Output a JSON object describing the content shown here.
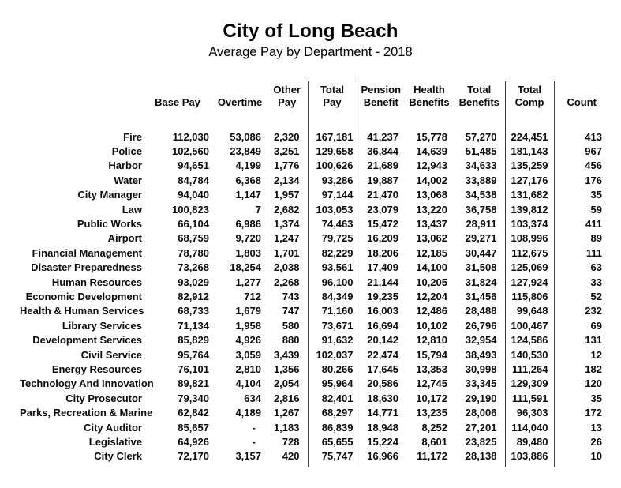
{
  "title": "City of Long Beach",
  "subtitle": "Average Pay by Department - 2018",
  "table": {
    "columns": [
      {
        "key": "department",
        "line1": "",
        "line2": "",
        "divider_after": false
      },
      {
        "key": "base_pay",
        "line1": "",
        "line2": "Base Pay",
        "divider_after": false
      },
      {
        "key": "overtime",
        "line1": "",
        "line2": "Overtime",
        "divider_after": false
      },
      {
        "key": "other_pay",
        "line1": "Other",
        "line2": "Pay",
        "divider_after": true
      },
      {
        "key": "total_pay",
        "line1": "Total",
        "line2": "Pay",
        "divider_after": true
      },
      {
        "key": "pension_benefit",
        "line1": "Pension",
        "line2": "Benefit",
        "divider_after": false
      },
      {
        "key": "health_benefits",
        "line1": "Health",
        "line2": "Benefits",
        "divider_after": false
      },
      {
        "key": "total_benefits",
        "line1": "Total",
        "line2": "Benefits",
        "divider_after": true
      },
      {
        "key": "total_comp",
        "line1": "Total",
        "line2": "Comp",
        "divider_after": true
      },
      {
        "key": "count",
        "line1": "",
        "line2": "Count",
        "divider_after": false
      }
    ],
    "rows": [
      {
        "department": "Fire",
        "base_pay": "112,030",
        "overtime": "53,086",
        "other_pay": "2,320",
        "total_pay": "167,181",
        "pension_benefit": "41,237",
        "health_benefits": "15,778",
        "total_benefits": "57,270",
        "total_comp": "224,451",
        "count": "413"
      },
      {
        "department": "Police",
        "base_pay": "102,560",
        "overtime": "23,849",
        "other_pay": "3,251",
        "total_pay": "129,658",
        "pension_benefit": "36,844",
        "health_benefits": "14,639",
        "total_benefits": "51,485",
        "total_comp": "181,143",
        "count": "967"
      },
      {
        "department": "Harbor",
        "base_pay": "94,651",
        "overtime": "4,199",
        "other_pay": "1,776",
        "total_pay": "100,626",
        "pension_benefit": "21,689",
        "health_benefits": "12,943",
        "total_benefits": "34,633",
        "total_comp": "135,259",
        "count": "456"
      },
      {
        "department": "Water",
        "base_pay": "84,784",
        "overtime": "6,368",
        "other_pay": "2,134",
        "total_pay": "93,286",
        "pension_benefit": "19,887",
        "health_benefits": "14,002",
        "total_benefits": "33,889",
        "total_comp": "127,176",
        "count": "176"
      },
      {
        "department": "City Manager",
        "base_pay": "94,040",
        "overtime": "1,147",
        "other_pay": "1,957",
        "total_pay": "97,144",
        "pension_benefit": "21,470",
        "health_benefits": "13,068",
        "total_benefits": "34,538",
        "total_comp": "131,682",
        "count": "35"
      },
      {
        "department": "Law",
        "base_pay": "100,823",
        "overtime": "7",
        "other_pay": "2,682",
        "total_pay": "103,053",
        "pension_benefit": "23,079",
        "health_benefits": "13,220",
        "total_benefits": "36,758",
        "total_comp": "139,812",
        "count": "59"
      },
      {
        "department": "Public Works",
        "base_pay": "66,104",
        "overtime": "6,986",
        "other_pay": "1,374",
        "total_pay": "74,463",
        "pension_benefit": "15,472",
        "health_benefits": "13,437",
        "total_benefits": "28,911",
        "total_comp": "103,374",
        "count": "411"
      },
      {
        "department": "Airport",
        "base_pay": "68,759",
        "overtime": "9,720",
        "other_pay": "1,247",
        "total_pay": "79,725",
        "pension_benefit": "16,209",
        "health_benefits": "13,062",
        "total_benefits": "29,271",
        "total_comp": "108,996",
        "count": "89"
      },
      {
        "department": "Financial Management",
        "base_pay": "78,780",
        "overtime": "1,803",
        "other_pay": "1,701",
        "total_pay": "82,229",
        "pension_benefit": "18,206",
        "health_benefits": "12,185",
        "total_benefits": "30,447",
        "total_comp": "112,675",
        "count": "111"
      },
      {
        "department": "Disaster Preparedness",
        "base_pay": "73,268",
        "overtime": "18,254",
        "other_pay": "2,038",
        "total_pay": "93,561",
        "pension_benefit": "17,409",
        "health_benefits": "14,100",
        "total_benefits": "31,508",
        "total_comp": "125,069",
        "count": "63"
      },
      {
        "department": "Human Resources",
        "base_pay": "93,029",
        "overtime": "1,277",
        "other_pay": "2,268",
        "total_pay": "96,100",
        "pension_benefit": "21,144",
        "health_benefits": "10,205",
        "total_benefits": "31,824",
        "total_comp": "127,924",
        "count": "33"
      },
      {
        "department": "Economic Development",
        "base_pay": "82,912",
        "overtime": "712",
        "other_pay": "743",
        "total_pay": "84,349",
        "pension_benefit": "19,235",
        "health_benefits": "12,204",
        "total_benefits": "31,456",
        "total_comp": "115,806",
        "count": "52"
      },
      {
        "department": "Health & Human Services",
        "base_pay": "68,733",
        "overtime": "1,679",
        "other_pay": "747",
        "total_pay": "71,160",
        "pension_benefit": "16,003",
        "health_benefits": "12,486",
        "total_benefits": "28,488",
        "total_comp": "99,648",
        "count": "232"
      },
      {
        "department": "Library Services",
        "base_pay": "71,134",
        "overtime": "1,958",
        "other_pay": "580",
        "total_pay": "73,671",
        "pension_benefit": "16,694",
        "health_benefits": "10,102",
        "total_benefits": "26,796",
        "total_comp": "100,467",
        "count": "69"
      },
      {
        "department": "Development Services",
        "base_pay": "85,829",
        "overtime": "4,926",
        "other_pay": "880",
        "total_pay": "91,632",
        "pension_benefit": "20,142",
        "health_benefits": "12,810",
        "total_benefits": "32,954",
        "total_comp": "124,586",
        "count": "131"
      },
      {
        "department": "Civil Service",
        "base_pay": "95,764",
        "overtime": "3,059",
        "other_pay": "3,439",
        "total_pay": "102,037",
        "pension_benefit": "22,474",
        "health_benefits": "15,794",
        "total_benefits": "38,493",
        "total_comp": "140,530",
        "count": "12"
      },
      {
        "department": "Energy Resources",
        "base_pay": "76,101",
        "overtime": "2,810",
        "other_pay": "1,356",
        "total_pay": "80,266",
        "pension_benefit": "17,645",
        "health_benefits": "13,353",
        "total_benefits": "30,998",
        "total_comp": "111,264",
        "count": "182"
      },
      {
        "department": "Technology And Innovation",
        "base_pay": "89,821",
        "overtime": "4,104",
        "other_pay": "2,054",
        "total_pay": "95,964",
        "pension_benefit": "20,586",
        "health_benefits": "12,745",
        "total_benefits": "33,345",
        "total_comp": "129,309",
        "count": "120"
      },
      {
        "department": "City Prosecutor",
        "base_pay": "79,340",
        "overtime": "634",
        "other_pay": "2,816",
        "total_pay": "82,401",
        "pension_benefit": "18,630",
        "health_benefits": "10,172",
        "total_benefits": "29,190",
        "total_comp": "111,591",
        "count": "35"
      },
      {
        "department": "Parks, Recreation & Marine",
        "base_pay": "62,842",
        "overtime": "4,189",
        "other_pay": "1,267",
        "total_pay": "68,297",
        "pension_benefit": "14,771",
        "health_benefits": "13,235",
        "total_benefits": "28,006",
        "total_comp": "96,303",
        "count": "172"
      },
      {
        "department": "City Auditor",
        "base_pay": "85,657",
        "overtime": "-  ",
        "other_pay": "1,183",
        "total_pay": "86,839",
        "pension_benefit": "18,948",
        "health_benefits": "8,252",
        "total_benefits": "27,201",
        "total_comp": "114,040",
        "count": "13"
      },
      {
        "department": "Legislative",
        "base_pay": "64,926",
        "overtime": "-  ",
        "other_pay": "728",
        "total_pay": "65,655",
        "pension_benefit": "15,224",
        "health_benefits": "8,601",
        "total_benefits": "23,825",
        "total_comp": "89,480",
        "count": "26"
      },
      {
        "department": "City Clerk",
        "base_pay": "72,170",
        "overtime": "3,157",
        "other_pay": "420",
        "total_pay": "75,747",
        "pension_benefit": "16,966",
        "health_benefits": "11,172",
        "total_benefits": "28,138",
        "total_comp": "103,886",
        "count": "10"
      }
    ]
  }
}
